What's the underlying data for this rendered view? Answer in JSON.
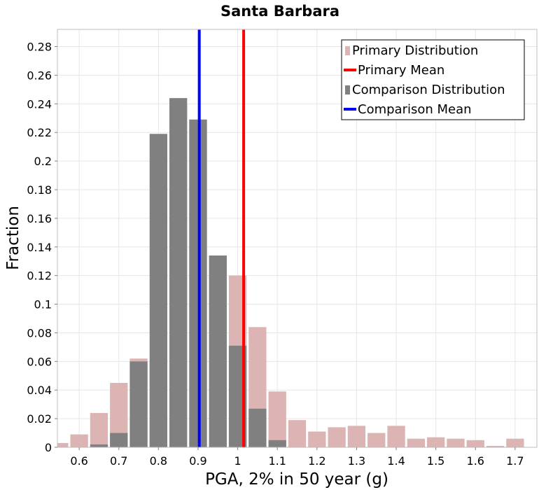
{
  "chart_data": {
    "type": "bar",
    "title": "Santa Barbara",
    "xlabel": "PGA, 2% in 50 year (g)",
    "ylabel": "Fraction",
    "xlim": [
      0.545,
      1.755
    ],
    "ylim": [
      0,
      0.292
    ],
    "bin_width": 0.05,
    "x_ticks": [
      0.6,
      0.7,
      0.8,
      0.9,
      1.0,
      1.1,
      1.2,
      1.3,
      1.4,
      1.5,
      1.6,
      1.7
    ],
    "x_tick_labels": [
      "0.6",
      "0.7",
      "0.8",
      "0.9",
      "1",
      "1.1",
      "1.2",
      "1.3",
      "1.4",
      "1.5",
      "1.6",
      "1.7"
    ],
    "y_ticks": [
      0,
      0.02,
      0.04,
      0.06,
      0.08,
      0.1,
      0.12,
      0.14,
      0.16,
      0.18,
      0.2,
      0.22,
      0.24,
      0.26,
      0.28
    ],
    "y_tick_labels": [
      "0",
      "0.02",
      "0.04",
      "0.06",
      "0.08",
      "0.1",
      "0.12",
      "0.14",
      "0.16",
      "0.18",
      "0.2",
      "0.22",
      "0.24",
      "0.26",
      "0.28"
    ],
    "grid": true,
    "legend_position": "top-right",
    "series": [
      {
        "name": "Primary Distribution",
        "kind": "histogram",
        "color": "#dcb4b4",
        "x": [
          0.55,
          0.6,
          0.65,
          0.7,
          0.75,
          0.8,
          0.85,
          0.9,
          0.95,
          1.0,
          1.05,
          1.1,
          1.15,
          1.2,
          1.25,
          1.3,
          1.35,
          1.4,
          1.45,
          1.5,
          1.55,
          1.6,
          1.65,
          1.7,
          1.75
        ],
        "values": [
          0.003,
          0.009,
          0.024,
          0.045,
          0.062,
          0.06,
          0.24,
          0.229,
          0.134,
          0.12,
          0.084,
          0.039,
          0.019,
          0.011,
          0.014,
          0.015,
          0.01,
          0.015,
          0.006,
          0.007,
          0.006,
          0.005,
          0.001,
          0.006,
          0.0
        ]
      },
      {
        "name": "Primary Mean",
        "kind": "vline",
        "color": "#ff0000",
        "x": 1.015
      },
      {
        "name": "Comparison Distribution",
        "kind": "histogram",
        "color": "#808080",
        "x": [
          0.55,
          0.6,
          0.65,
          0.7,
          0.75,
          0.8,
          0.85,
          0.9,
          0.95,
          1.0,
          1.05,
          1.1,
          1.15,
          1.2,
          1.25,
          1.3,
          1.35,
          1.4,
          1.45,
          1.5,
          1.55,
          1.6,
          1.65,
          1.7,
          1.75
        ],
        "values": [
          0,
          0,
          0.002,
          0.01,
          0.06,
          0.219,
          0.244,
          0.229,
          0.134,
          0.071,
          0.027,
          0.005,
          0,
          0,
          0,
          0,
          0,
          0,
          0,
          0,
          0,
          0,
          0,
          0,
          0
        ]
      },
      {
        "name": "Comparison Mean",
        "kind": "vline",
        "color": "#0000ff",
        "x": 0.903
      }
    ]
  }
}
